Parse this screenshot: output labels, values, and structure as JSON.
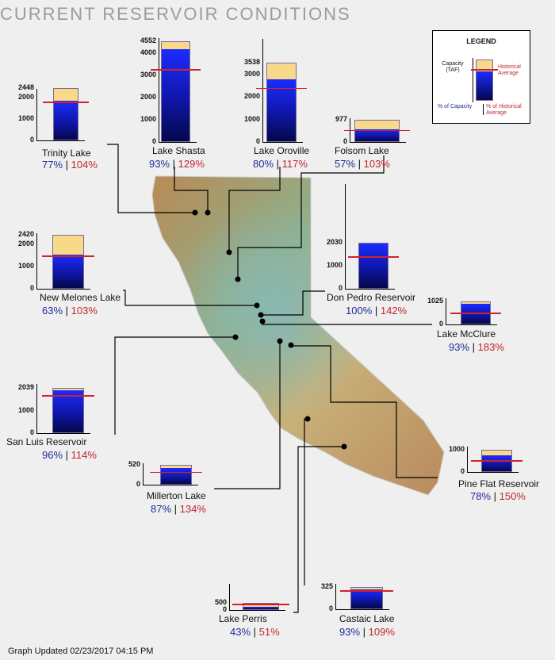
{
  "title": "CURRENT RESERVOIR CONDITIONS",
  "updated": "Graph Updated 02/23/2017 04:15 PM",
  "colors": {
    "capacity_fill": "#f8d98a",
    "storage_fill": "#1b2cff",
    "historical_line": "#d4202b",
    "percent_capacity_text": "#1f2c9a",
    "percent_historical_text": "#c0272d"
  },
  "legend": {
    "title": "LEGEND",
    "capacity_label": "Capacity (TAF)",
    "historical_label": "Historical Average",
    "pct_capacity_label": "% of Capacity",
    "pct_historical_label": "% of Historical Average"
  },
  "chart_data": {
    "type": "bar",
    "unit": "TAF",
    "reservoirs": [
      {
        "name": "Trinity Lake",
        "capacity": 2448,
        "ticks": [
          0,
          1000,
          2000,
          2448
        ],
        "pct_capacity": 77,
        "pct_historical": 104
      },
      {
        "name": "Lake Shasta",
        "capacity": 4552,
        "ticks": [
          0,
          1000,
          2000,
          3000,
          4000,
          4552
        ],
        "pct_capacity": 93,
        "pct_historical": 129
      },
      {
        "name": "Lake Oroville",
        "capacity": 3538,
        "ticks": [
          0,
          1000,
          2000,
          3000,
          3538
        ],
        "pct_capacity": 80,
        "pct_historical": 117
      },
      {
        "name": "Folsom Lake",
        "capacity": 977,
        "ticks": [
          0,
          977
        ],
        "pct_capacity": 57,
        "pct_historical": 103
      },
      {
        "name": "New Melones Lake",
        "capacity": 2420,
        "ticks": [
          0,
          1000,
          2000,
          2420
        ],
        "pct_capacity": 63,
        "pct_historical": 103
      },
      {
        "name": "Don Pedro Reservoir",
        "capacity": 2030,
        "ticks": [
          0,
          1000,
          2030
        ],
        "pct_capacity": 100,
        "pct_historical": 142
      },
      {
        "name": "Lake McClure",
        "capacity": 1025,
        "ticks": [
          0,
          1025
        ],
        "pct_capacity": 93,
        "pct_historical": 183
      },
      {
        "name": "San Luis Reservoir",
        "capacity": 2039,
        "ticks": [
          0,
          1000,
          2039
        ],
        "pct_capacity": 96,
        "pct_historical": 114
      },
      {
        "name": "Millerton Lake",
        "capacity": 520,
        "ticks": [
          0,
          520
        ],
        "pct_capacity": 87,
        "pct_historical": 134
      },
      {
        "name": "Pine Flat Reservoir",
        "capacity": 1000,
        "ticks": [
          0,
          1000
        ],
        "pct_capacity": 78,
        "pct_historical": 150
      },
      {
        "name": "Lake Perris",
        "capacity": 500,
        "ticks": [
          0,
          500
        ],
        "pct_capacity": 43,
        "pct_historical": 51
      },
      {
        "name": "Castaic Lake",
        "capacity": 325,
        "ticks": [
          0,
          325
        ],
        "pct_capacity": 93,
        "pct_historical": 109
      }
    ]
  }
}
